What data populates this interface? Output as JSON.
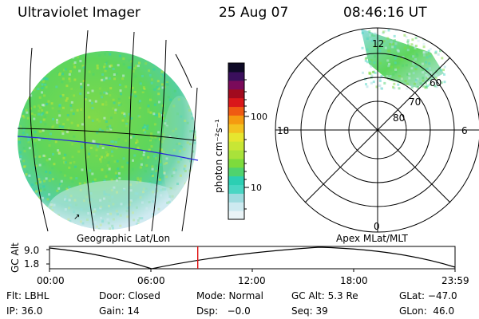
{
  "header": {
    "title": "Ultraviolet Imager",
    "date": "25 Aug 07",
    "time": "08:46:16 UT"
  },
  "colorbar": {
    "unit_label": "photon cm⁻²s⁻¹",
    "ticks": [
      "100",
      "10"
    ],
    "colors": [
      "#e9f3f6",
      "#cdeaf0",
      "#9fdcdf",
      "#49d6c3",
      "#2ccfb3",
      "#4fd36e",
      "#7ddb3c",
      "#a9e23a",
      "#c8e635",
      "#e6e62f",
      "#f3c21f",
      "#f59a10",
      "#ef5a12",
      "#d9171a",
      "#a10a1e",
      "#7a0a5a",
      "#3a0f5c",
      "#0e0a26"
    ]
  },
  "left_panel": {
    "caption": "Geographic Lat/Lon",
    "colors": {
      "aurora": "#5ed65b",
      "edge": "#cfeaf1",
      "lat_line_blue": "#2626d9"
    }
  },
  "right_panel": {
    "caption": "Apex MLat/MLT",
    "mlt_labels": {
      "top": "12",
      "left": "18",
      "right": "6",
      "bottom": "0"
    },
    "mlat_labels": [
      "60",
      "70",
      "80"
    ]
  },
  "timeline": {
    "ylabel": "GC Alt",
    "ytick_top": "9.0",
    "ytick_bottom": "1.8",
    "xticks": [
      "00:00",
      "06:00",
      "12:00",
      "18:00",
      "23:59"
    ],
    "current_time_fraction": 0.3656,
    "marker_color": "#e01010"
  },
  "footer": {
    "row1": [
      "Flt: LBHL",
      "Door: Closed",
      "Mode: Normal",
      "GC Alt: 5.3 Re",
      "GLat: −47.0"
    ],
    "row2": [
      "IP: 36.0",
      "Gain: 14",
      "Dsp:   −0.0",
      "Seq: 39",
      "GLon:  46.0"
    ]
  }
}
